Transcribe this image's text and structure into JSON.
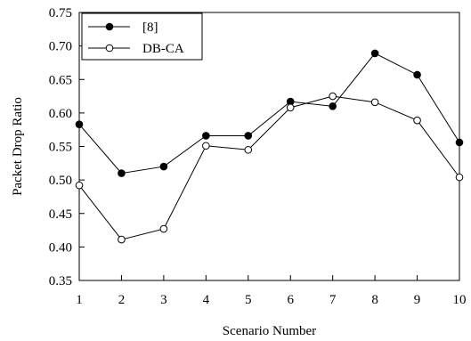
{
  "chart_data": {
    "type": "line",
    "title": "",
    "xlabel": "Scenario Number",
    "ylabel": "Packet Drop Ratio",
    "x": [
      1,
      2,
      3,
      4,
      5,
      6,
      7,
      8,
      9,
      10
    ],
    "xlim": [
      1,
      10
    ],
    "ylim": [
      0.35,
      0.75
    ],
    "x_ticks": [
      "1",
      "2",
      "3",
      "4",
      "5",
      "6",
      "7",
      "8",
      "9",
      "10"
    ],
    "y_ticks": [
      "0.35",
      "0.40",
      "0.45",
      "0.50",
      "0.55",
      "0.60",
      "0.65",
      "0.70",
      "0.75"
    ],
    "grid": false,
    "legend_position": "top-left",
    "series": [
      {
        "name": "[8]",
        "marker": "filled-circle",
        "color": "#000000",
        "values": [
          0.583,
          0.51,
          0.52,
          0.566,
          0.566,
          0.617,
          0.61,
          0.689,
          0.657,
          0.556
        ]
      },
      {
        "name": "DB-CA",
        "marker": "open-circle",
        "color": "#000000",
        "values": [
          0.492,
          0.411,
          0.427,
          0.551,
          0.545,
          0.608,
          0.625,
          0.616,
          0.589,
          0.504
        ]
      }
    ]
  }
}
